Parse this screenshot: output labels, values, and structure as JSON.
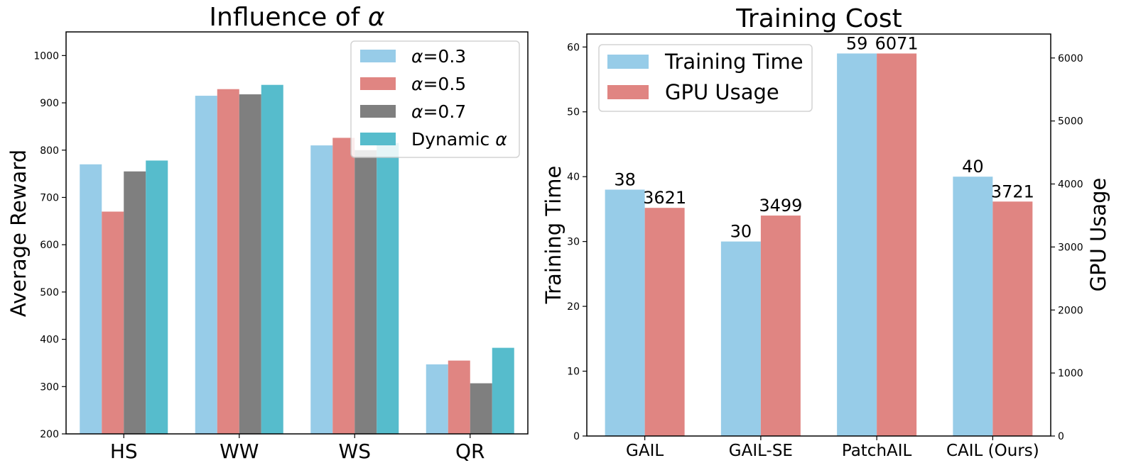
{
  "chart_data": [
    {
      "type": "bar",
      "title_prefix": "Influence of ",
      "title_symbol": "α",
      "xlabel": "",
      "ylabel": "Average Reward",
      "categories": [
        "HS",
        "WW",
        "WS",
        "QR"
      ],
      "ylim": [
        200,
        1050
      ],
      "yticks": [
        200,
        300,
        400,
        500,
        600,
        700,
        800,
        900,
        1000
      ],
      "legend_position": "top-right",
      "series": [
        {
          "name": "α=0.3",
          "label_symbol": "α",
          "label_rest": "=0.3",
          "color": "#97CCE8",
          "values": [
            770,
            915,
            810,
            347
          ]
        },
        {
          "name": "α=0.5",
          "label_symbol": "α",
          "label_rest": "=0.5",
          "color": "#E08582",
          "values": [
            670,
            929,
            826,
            355
          ]
        },
        {
          "name": "α=0.7",
          "label_symbol": "α",
          "label_rest": "=0.7",
          "color": "#7F7F7F",
          "values": [
            755,
            918,
            800,
            307
          ]
        },
        {
          "name": "Dynamic α",
          "label_text": "Dynamic ",
          "label_symbol": "α",
          "color": "#56BCCC",
          "values": [
            778,
            938,
            815,
            382
          ]
        }
      ]
    },
    {
      "type": "bar",
      "title": "Training Cost",
      "ylabel": "Training Time",
      "ylabel_right": "GPU Usage",
      "categories": [
        "GAIL",
        "GAIL-SE",
        "PatchAIL",
        "CAIL (Ours)"
      ],
      "ylim": [
        0,
        62
      ],
      "ylim_right": [
        0,
        6380
      ],
      "yticks": [
        0,
        10,
        20,
        30,
        40,
        50,
        60
      ],
      "yticks_right": [
        0,
        1000,
        2000,
        3000,
        4000,
        5000,
        6000
      ],
      "legend_position": "top-left",
      "series": [
        {
          "name": "Training Time",
          "axis": "left",
          "color": "#97CCE8",
          "values": [
            38,
            30,
            59,
            40
          ],
          "labels": [
            "38",
            "30",
            "59",
            "40"
          ]
        },
        {
          "name": "GPU Usage",
          "axis": "right",
          "color": "#E08582",
          "values": [
            3621,
            3499,
            6071,
            3721
          ],
          "labels": [
            "3621",
            "3499",
            "6071",
            "3721"
          ]
        }
      ]
    }
  ]
}
